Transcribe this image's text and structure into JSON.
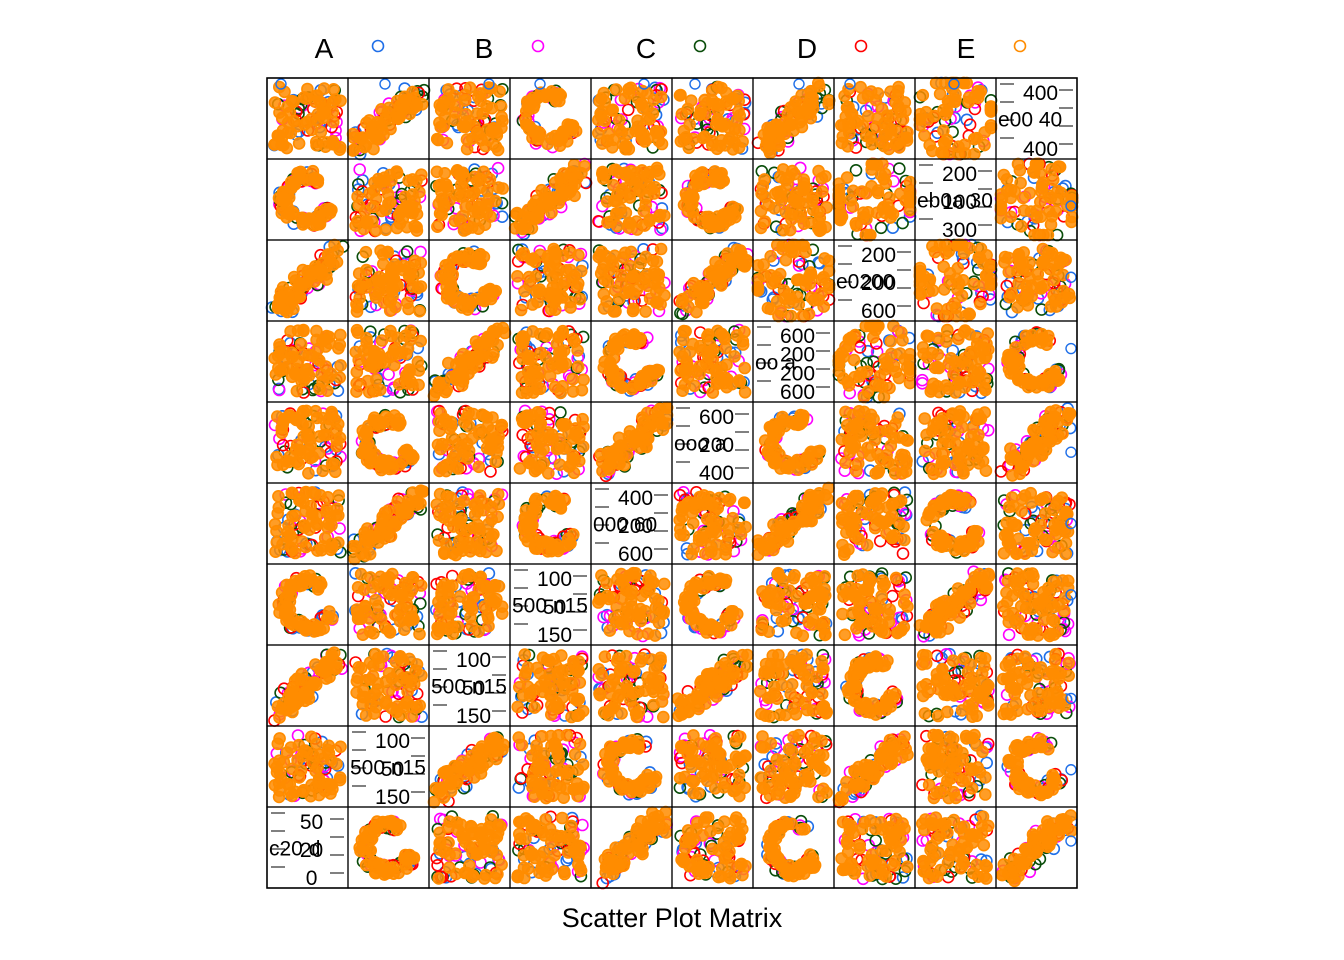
{
  "chart_data": {
    "type": "scatter",
    "subtype": "scatter-plot-matrix",
    "xlabel": "Scatter Plot Matrix",
    "grid": false,
    "legend_position": "top",
    "n_panels": 10,
    "series": [
      {
        "name": "A",
        "color": "#1f6fe8"
      },
      {
        "name": "B",
        "color": "#ff00ff"
      },
      {
        "name": "C",
        "color": "#0a4d0a"
      },
      {
        "name": "D",
        "color": "#ff0000"
      },
      {
        "name": "E",
        "color": "#ff8c00"
      }
    ],
    "diagonal_labels": [
      {
        "ticks": [
          "50",
          "20",
          "0"
        ],
        "text": "c20 d"
      },
      {
        "ticks": [
          "100",
          "50",
          "150"
        ],
        "text": "500 n15"
      },
      {
        "ticks": [
          "100",
          "50",
          "150"
        ],
        "text": "500 n15"
      },
      {
        "ticks": [
          "100",
          "50",
          "150"
        ],
        "text": "500 n15"
      },
      {
        "ticks": [
          "400",
          "200",
          "600"
        ],
        "text": "000 60"
      },
      {
        "ticks": [
          "600",
          "200",
          "400"
        ],
        "text": "ooo a"
      },
      {
        "ticks": [
          "600",
          "200",
          "200",
          "600"
        ],
        "text": "oo a"
      },
      {
        "ticks": [
          "200",
          "200",
          "600"
        ],
        "text": "e0200"
      },
      {
        "ticks": [
          "200",
          "100",
          "300"
        ],
        "text": "eb0a 30"
      },
      {
        "ticks": [
          "400",
          "400"
        ],
        "text": "e00 40"
      }
    ]
  }
}
